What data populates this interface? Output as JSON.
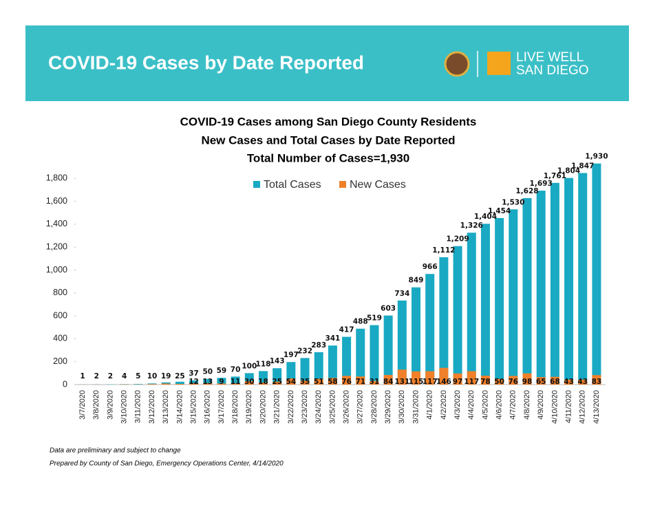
{
  "header": {
    "title": "COVID-19 Cases by Date Reported",
    "logo": [
      "LIVE WELL",
      "SAN DIEGO"
    ]
  },
  "chart_data": {
    "type": "bar",
    "title": "COVID-19 Cases among San Diego County Residents",
    "subtitle": [
      "New Cases and Total Cases by Date Reported",
      "Total Number of Cases=1,930"
    ],
    "categories": [
      "3/7/2020",
      "3/8/2020",
      "3/9/2020",
      "3/10/2020",
      "3/11/2020",
      "3/12/2020",
      "3/13/2020",
      "3/14/2020",
      "3/15/2020",
      "3/16/2020",
      "3/17/2020",
      "3/18/2020",
      "3/19/2020",
      "3/20/2020",
      "3/21/2020",
      "3/22/2020",
      "3/23/2020",
      "3/24/2020",
      "3/25/2020",
      "3/26/2020",
      "3/27/2020",
      "3/28/2020",
      "3/29/2020",
      "3/30/2020",
      "3/31/2020",
      "4/1/2020",
      "4/2/2020",
      "4/3/2020",
      "4/4/2020",
      "4/5/2020",
      "4/6/2020",
      "4/7/2020",
      "4/8/2020",
      "4/9/2020",
      "4/10/2020",
      "4/11/2020",
      "4/12/2020",
      "4/13/2020"
    ],
    "series": [
      {
        "name": "Total Cases",
        "color": "#19a9c3",
        "values": [
          1,
          2,
          2,
          4,
          5,
          10,
          19,
          25,
          37,
          50,
          59,
          70,
          100,
          118,
          143,
          197,
          232,
          283,
          341,
          417,
          488,
          519,
          603,
          734,
          849,
          966,
          1112,
          1209,
          1326,
          1404,
          1454,
          1530,
          1628,
          1693,
          1761,
          1804,
          1847,
          1930
        ],
        "value_labels": [
          "1",
          "2",
          "2",
          "4",
          "5",
          "10",
          "19",
          "25",
          "37",
          "50",
          "59",
          "70",
          "100",
          "118",
          "143",
          "197",
          "232",
          "283",
          "341",
          "417",
          "488",
          "519",
          "603",
          "734",
          "849",
          "966",
          "1,112",
          "1,209",
          "1,326",
          "1,404",
          "1,454",
          "1,530",
          "1,628",
          "1,693",
          "1,761",
          "1,804",
          "1,847",
          "1,930"
        ]
      },
      {
        "name": "New Cases",
        "color": "#f0802a",
        "values": [
          1,
          1,
          0,
          2,
          1,
          5,
          9,
          6,
          12,
          13,
          9,
          11,
          30,
          18,
          25,
          54,
          35,
          51,
          58,
          76,
          71,
          31,
          84,
          131,
          115,
          117,
          146,
          97,
          117,
          78,
          50,
          76,
          98,
          65,
          68,
          43,
          43,
          83
        ],
        "value_labels": [
          null,
          null,
          null,
          null,
          null,
          null,
          null,
          null,
          "12",
          "13",
          "9",
          "11",
          "30",
          "18",
          "25",
          "54",
          "35",
          "51",
          "58",
          "76",
          "71",
          "31",
          "84",
          "131",
          "115",
          "117",
          "146",
          "97",
          "117",
          "78",
          "50",
          "76",
          "98",
          "65",
          "68",
          "43",
          "43",
          "83"
        ]
      }
    ],
    "ylim": [
      0,
      2000
    ],
    "yticks": [
      0,
      {
        "value": 200,
        "label": "200"
      },
      400,
      600,
      800,
      {
        "value": 1000,
        "label": "1,000"
      },
      {
        "value": 1200,
        "label": "1,200"
      },
      {
        "value": 1400,
        "label": "1,400"
      },
      {
        "value": 1600,
        "label": "1,600"
      },
      {
        "value": 1800,
        "label": "1,800"
      }
    ],
    "legend": "top"
  },
  "footer": [
    "Data are preliminary and subject to change",
    "Prepared by County of San Diego, Emergency Operations Center, 4/14/2020"
  ]
}
